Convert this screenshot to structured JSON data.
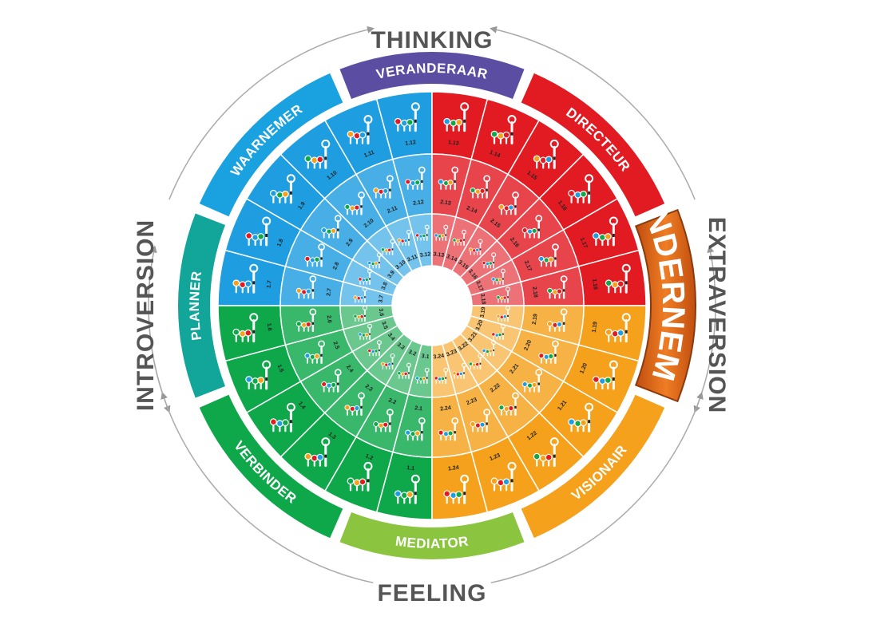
{
  "axes": {
    "top": "THINKING",
    "bottom": "FEELING",
    "left": "INTROVERSION",
    "right": "EXTRAVERSION"
  },
  "types": [
    {
      "label": "VERANDERAAR",
      "color": "#5b4ea2"
    },
    {
      "label": "DIRECTEUR",
      "color": "#e21b23"
    },
    {
      "label": "ONDERNEMER",
      "color": "#e36a1c",
      "highlighted": true
    },
    {
      "label": "VISIONAIR",
      "color": "#f5a11c"
    },
    {
      "label": "MEDIATOR",
      "color": "#8bc53f"
    },
    {
      "label": "VERBINDER",
      "color": "#0ea74a"
    },
    {
      "label": "PLANNER",
      "color": "#12a59a"
    },
    {
      "label": "WAARNEMER",
      "color": "#1aa1e0"
    }
  ],
  "quadrant_colors": {
    "blue": "#1e9ee0",
    "red": "#e21b23",
    "orange": "#f5a11c",
    "green": "#0ea74a"
  },
  "marker_colors": [
    "#1e9ee0",
    "#0ea74a",
    "#f5a11c",
    "#e21b23"
  ],
  "rings": {
    "ring1": [
      "1.1",
      "1.2",
      "1.3",
      "1.4",
      "1.5",
      "1.6",
      "1.7",
      "1.8",
      "1.9",
      "1.10",
      "1.11",
      "1.12",
      "1.13",
      "1.14",
      "1.15",
      "1.16",
      "1.17",
      "1.18",
      "1.19",
      "1.20",
      "1.21",
      "1.22",
      "1.23",
      "1.24"
    ],
    "ring2": [
      "2.1",
      "2.2",
      "2.3",
      "2.4",
      "2.5",
      "2.6",
      "2.7",
      "2.8",
      "2.9",
      "2.10",
      "2.11",
      "2.12",
      "2.13",
      "2.14",
      "2.15",
      "2.16",
      "2.17",
      "2.18",
      "2.19",
      "2.20",
      "2.21",
      "2.22",
      "2.23",
      "2.24"
    ],
    "ring3": [
      "3.1",
      "3.2",
      "3.3",
      "3.4",
      "3.5",
      "3.6",
      "3.7",
      "3.8",
      "3.9",
      "3.10",
      "3.11",
      "3.12",
      "3.13",
      "3.14",
      "3.15",
      "3.16",
      "3.17",
      "3.18",
      "3.19",
      "3.20",
      "3.21",
      "3.22",
      "3.23",
      "3.24"
    ]
  }
}
